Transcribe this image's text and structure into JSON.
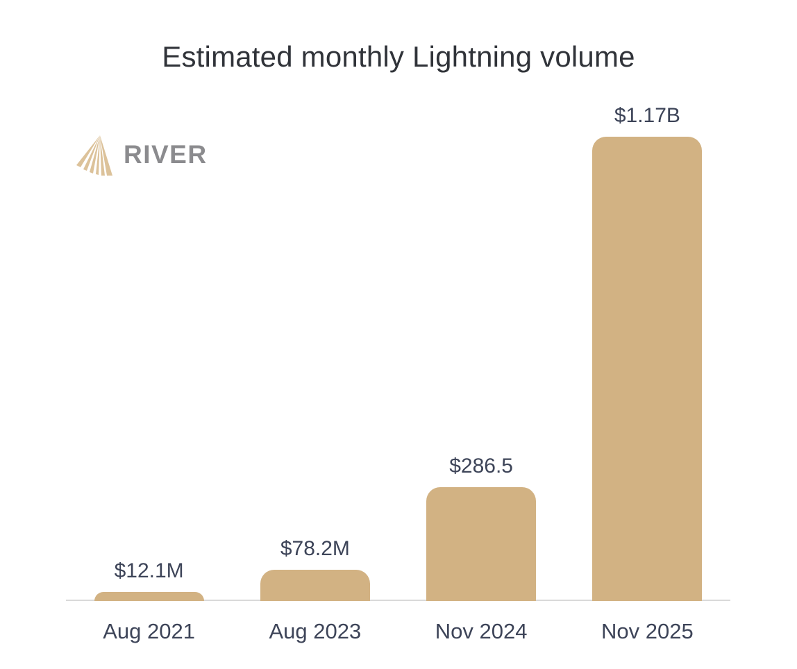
{
  "title": "Estimated monthly Lightning volume",
  "logo": {
    "text": "RIVER",
    "mark": "river-rays-mark"
  },
  "colors": {
    "background": "#ffffff",
    "bar": "#d2b283",
    "title_text": "#303339",
    "label_text": "#3d4458",
    "baseline": "#d9d9d9",
    "logo_mark": "#dcc29a",
    "logo_text": "#8b8b8e"
  },
  "chart_data": {
    "type": "bar",
    "title": "Estimated monthly Lightning volume",
    "categories": [
      "Aug 2021",
      "Aug 2023",
      "Nov 2024",
      "Nov 2025"
    ],
    "values_in_millions_usd": [
      12.1,
      78.2,
      286.5,
      1170
    ],
    "value_labels": [
      "$12.1M",
      "$78.2M",
      "$286.5",
      "$1.17B"
    ],
    "xlabel": "",
    "ylabel": "",
    "ylim": [
      0,
      1170
    ],
    "grid": false,
    "legend": false,
    "bar_corner_style": "rounded-top"
  }
}
